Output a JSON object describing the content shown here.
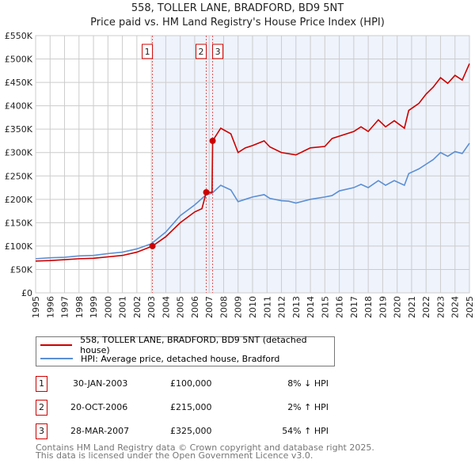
{
  "chart_data": {
    "type": "line",
    "title": "558, TOLLER LANE, BRADFORD, BD9 5NT",
    "subtitle": "Price paid vs. HM Land Registry's House Price Index (HPI)",
    "xlim": [
      1995,
      2025
    ],
    "ylim": [
      0,
      550000
    ],
    "x_ticks": [
      "1995",
      "1996",
      "1997",
      "1998",
      "1999",
      "2000",
      "2001",
      "2002",
      "2003",
      "2004",
      "2005",
      "2006",
      "2007",
      "2008",
      "2009",
      "2010",
      "2011",
      "2012",
      "2013",
      "2014",
      "2015",
      "2016",
      "2017",
      "2018",
      "2019",
      "2020",
      "2021",
      "2022",
      "2023",
      "2024",
      "2025"
    ],
    "y_ticks": [
      {
        "v": 0,
        "l": "£0"
      },
      {
        "v": 50000,
        "l": "£50K"
      },
      {
        "v": 100000,
        "l": "£100K"
      },
      {
        "v": 150000,
        "l": "£150K"
      },
      {
        "v": 200000,
        "l": "£200K"
      },
      {
        "v": 250000,
        "l": "£250K"
      },
      {
        "v": 300000,
        "l": "£300K"
      },
      {
        "v": 350000,
        "l": "£350K"
      },
      {
        "v": 400000,
        "l": "£400K"
      },
      {
        "v": 450000,
        "l": "£450K"
      },
      {
        "v": 500000,
        "l": "£500K"
      },
      {
        "v": 550000,
        "l": "£550K"
      }
    ],
    "grid": true,
    "series": [
      {
        "name": "558, TOLLER LANE, BRADFORD, BD9 5NT (detached house)",
        "color": "#cc0000",
        "x": [
          1995,
          1996,
          1997,
          1998,
          1999,
          2000,
          2001,
          2002,
          2003.08,
          2004,
          2005,
          2006,
          2006.5,
          2006.8,
          2007.2,
          2007.24,
          2007.8,
          2008.5,
          2009,
          2009.5,
          2010,
          2010.8,
          2011.2,
          2012,
          2013,
          2014,
          2015,
          2015.5,
          2016,
          2017,
          2017.5,
          2018,
          2018.7,
          2019.2,
          2019.8,
          2020.5,
          2020.8,
          2021.5,
          2022,
          2022.5,
          2023,
          2023.5,
          2024,
          2024.5,
          2025
        ],
        "y": [
          68000,
          69000,
          71000,
          73000,
          74000,
          77000,
          80000,
          87000,
          100000,
          120000,
          150000,
          173000,
          180000,
          215000,
          215000,
          325000,
          352000,
          340000,
          300000,
          310000,
          315000,
          325000,
          312000,
          300000,
          295000,
          310000,
          313000,
          330000,
          335000,
          345000,
          355000,
          345000,
          370000,
          355000,
          368000,
          352000,
          390000,
          405000,
          425000,
          440000,
          460000,
          448000,
          465000,
          455000,
          490000
        ]
      },
      {
        "name": "HPI: Average price, detached house, Bradford",
        "color": "#5b8fd4",
        "x": [
          1995,
          1996,
          1997,
          1998,
          1999,
          2000,
          2001,
          2002,
          2003,
          2004,
          2005,
          2006,
          2006.8,
          2007.2,
          2007.8,
          2008.5,
          2009,
          2009.5,
          2010,
          2010.8,
          2011.2,
          2012,
          2012.5,
          2013,
          2014,
          2015,
          2015.5,
          2016,
          2017,
          2017.5,
          2018,
          2018.7,
          2019.2,
          2019.8,
          2020.5,
          2020.8,
          2021.5,
          2022,
          2022.5,
          2023,
          2023.5,
          2024,
          2024.5,
          2025
        ],
        "y": [
          73000,
          75000,
          76000,
          79000,
          80000,
          84000,
          87000,
          94000,
          105000,
          130000,
          165000,
          188000,
          210000,
          213000,
          230000,
          220000,
          195000,
          200000,
          205000,
          210000,
          202000,
          197000,
          196000,
          192000,
          200000,
          205000,
          208000,
          218000,
          225000,
          232000,
          225000,
          240000,
          230000,
          240000,
          230000,
          255000,
          265000,
          275000,
          285000,
          300000,
          292000,
          302000,
          298000,
          320000
        ]
      }
    ],
    "sales": [
      {
        "n": "1",
        "x": 2003.08,
        "y": 100000,
        "date": "30-JAN-2003",
        "price": "£100,000",
        "hpi": "8% ↓ HPI"
      },
      {
        "n": "2",
        "x": 2006.8,
        "y": 215000,
        "date": "20-OCT-2006",
        "price": "£215,000",
        "hpi": "2% ↑ HPI"
      },
      {
        "n": "3",
        "x": 2007.24,
        "y": 325000,
        "date": "28-MAR-2007",
        "price": "£325,000",
        "hpi": "54% ↑ HPI"
      }
    ],
    "shade_from": 2003.08
  },
  "footer": [
    "Contains HM Land Registry data © Crown copyright and database right 2025.",
    "This data is licensed under the Open Government Licence v3.0."
  ]
}
